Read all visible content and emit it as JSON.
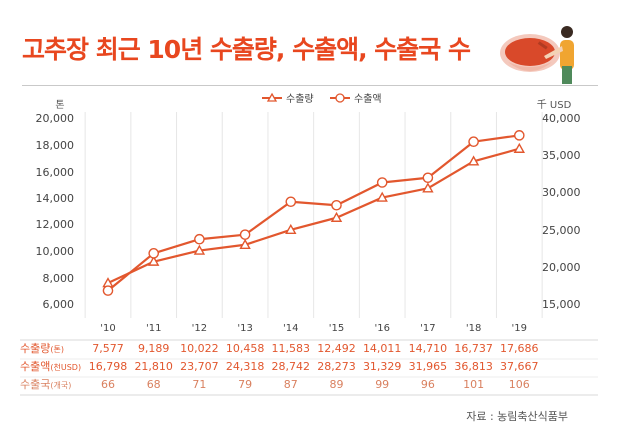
{
  "title": "고추장 최근 10년 수출량, 수출액, 수출국 수",
  "source": "자료 : 농림축산식품부",
  "colors": {
    "title": "#e8471f",
    "line": "#e2572e",
    "grid": "#e6e6e6",
    "row_value": "#e2572e",
    "row_count": "#d9805f"
  },
  "chart_data": {
    "type": "line",
    "categories": [
      "'10",
      "'11",
      "'12",
      "'13",
      "'14",
      "'15",
      "'16",
      "'17",
      "'18",
      "'19"
    ],
    "y_left": {
      "unit": "톤",
      "ticks": [
        "20,000",
        "18,000",
        "16,000",
        "14,000",
        "12,000",
        "10,000",
        "8,000",
        "6,000"
      ],
      "min": 6000,
      "max": 20000
    },
    "y_right": {
      "unit": "千 USD",
      "ticks": [
        "40,000",
        "35,000",
        "30,000",
        "25,000",
        "20,000",
        "15,000"
      ],
      "min": 15000,
      "max": 40000
    },
    "series": [
      {
        "name": "수출량",
        "axis": "left",
        "marker": "triangle",
        "values": [
          7577,
          9189,
          10022,
          10458,
          11583,
          12492,
          14011,
          14710,
          16737,
          17686
        ]
      },
      {
        "name": "수출액",
        "axis": "right",
        "marker": "circle",
        "values": [
          16798,
          21810,
          23707,
          24318,
          28742,
          28273,
          31329,
          31965,
          36813,
          37667
        ]
      }
    ],
    "legend_position": "top-center",
    "grid": "vertical"
  },
  "table": {
    "rows": [
      {
        "label": "수출량",
        "unit": "(톤)",
        "values": [
          "7,577",
          "9,189",
          "10,022",
          "10,458",
          "11,583",
          "12,492",
          "14,011",
          "14,710",
          "16,737",
          "17,686"
        ]
      },
      {
        "label": "수출액",
        "unit": "(천USD)",
        "values": [
          "16,798",
          "21,810",
          "23,707",
          "24,318",
          "28,742",
          "28,273",
          "31,329",
          "31,965",
          "36,813",
          "37,667"
        ]
      },
      {
        "label": "수출국",
        "unit": "(개국)",
        "values": [
          "66",
          "68",
          "71",
          "79",
          "87",
          "89",
          "99",
          "96",
          "101",
          "106"
        ]
      }
    ]
  }
}
